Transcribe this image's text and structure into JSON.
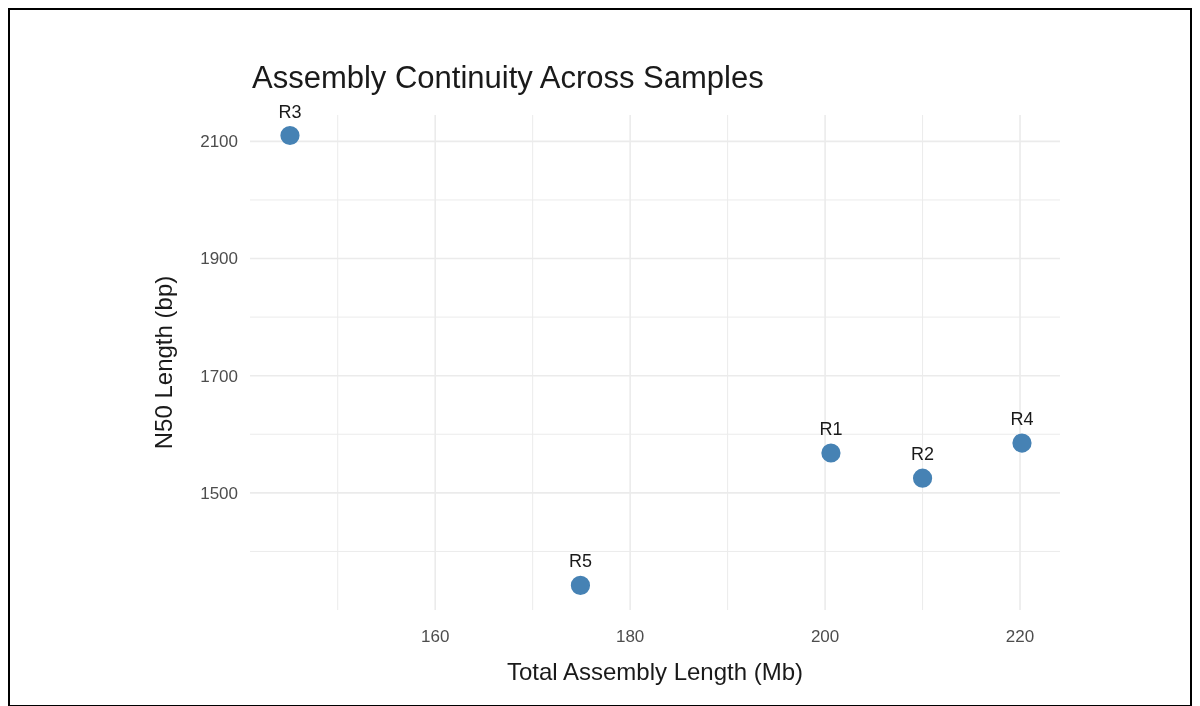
{
  "chart_data": {
    "type": "scatter",
    "title": "Assembly Continuity Across Samples",
    "xlabel": "Total Assembly Length (Mb)",
    "ylabel": "N50 Length (bp)",
    "x": [
      200.6,
      210.0,
      145.1,
      220.2,
      174.9
    ],
    "values": [
      1568,
      1525,
      2110,
      1585,
      1342
    ],
    "color": "#4682b4",
    "marker": "circle",
    "xlim": [
      141,
      224.1
    ],
    "ylim": [
      1300,
      2145
    ],
    "xticks": [
      {
        "value": 150,
        "label": null
      },
      160,
      {
        "value": 170,
        "label": null
      },
      180,
      {
        "value": 190,
        "label": null
      },
      200,
      {
        "value": 210,
        "label": null
      },
      220
    ],
    "yticks": [
      {
        "value": 1400,
        "label": null
      },
      1500,
      {
        "value": 1600,
        "label": null
      },
      1700,
      {
        "value": 1800,
        "label": null
      },
      1900,
      {
        "value": 2000,
        "label": null
      },
      2100
    ],
    "grid": true,
    "annotations": [
      {
        "text": "R1",
        "x": 200.6,
        "y": 1568
      },
      {
        "text": "R2",
        "x": 210.0,
        "y": 1525
      },
      {
        "text": "R3",
        "x": 145.1,
        "y": 2110
      },
      {
        "text": "R4",
        "x": 220.2,
        "y": 1585
      },
      {
        "text": "R5",
        "x": 174.9,
        "y": 1342
      }
    ]
  }
}
